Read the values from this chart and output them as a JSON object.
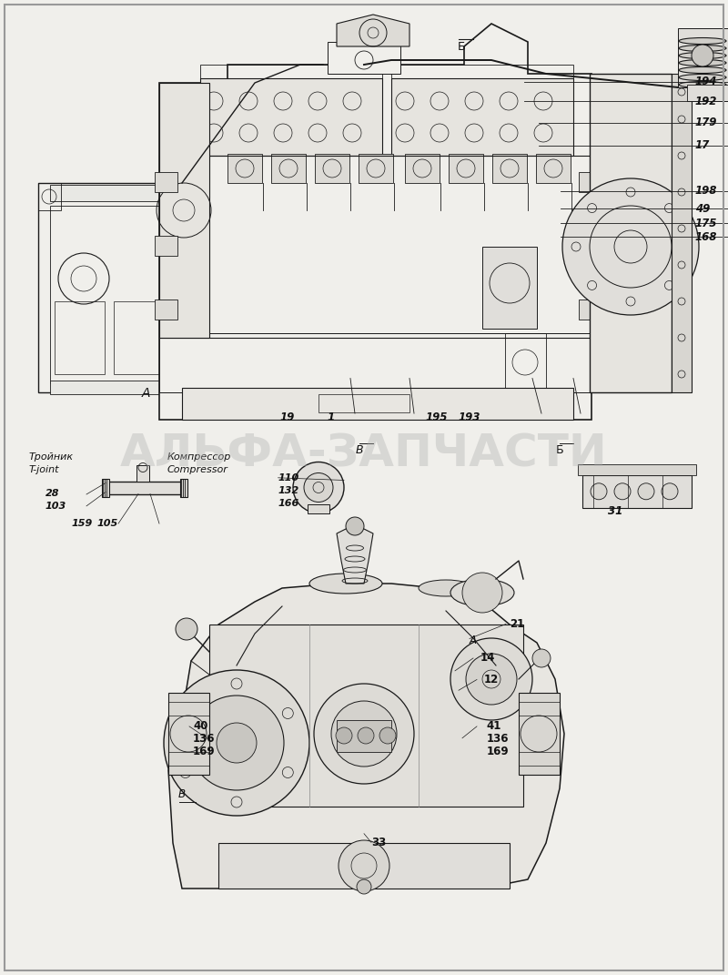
{
  "bg_color": "#f0efeb",
  "line_color": "#1a1a1a",
  "watermark_text": "АЛЬФА-ЗАПЧАСТИ",
  "watermark_color": "#b0b0b0",
  "watermark_alpha": 0.38,
  "watermark_fontsize": 36,
  "fig_width": 8.0,
  "fig_height": 10.71,
  "dpi": 100,
  "right_labels": [
    {
      "text": "194",
      "xf": 0.965,
      "yf": 0.916
    },
    {
      "text": "192",
      "xf": 0.965,
      "yf": 0.896
    },
    {
      "text": "179",
      "xf": 0.965,
      "yf": 0.874
    },
    {
      "text": "17",
      "xf": 0.965,
      "yf": 0.851
    },
    {
      "text": "198",
      "xf": 0.965,
      "yf": 0.804
    },
    {
      "text": "49",
      "xf": 0.965,
      "yf": 0.786
    },
    {
      "text": "175",
      "xf": 0.965,
      "yf": 0.771
    },
    {
      "text": "168",
      "xf": 0.965,
      "yf": 0.757
    }
  ],
  "bottom_labels_top_view": [
    {
      "text": "19",
      "xf": 0.395,
      "yf": 0.572
    },
    {
      "text": "1",
      "xf": 0.455,
      "yf": 0.572
    },
    {
      "text": "195",
      "xf": 0.6,
      "yf": 0.572
    },
    {
      "text": "193",
      "xf": 0.645,
      "yf": 0.572
    }
  ],
  "label_A_top": {
    "text": "А",
    "xf": 0.195,
    "yf": 0.597
  },
  "label_Б_top": {
    "text": "Б",
    "xf": 0.628,
    "yf": 0.952
  },
  "mid_section": {
    "label_B": {
      "text": "В",
      "xf": 0.488,
      "yf": 0.538
    },
    "label_Б": {
      "text": "Б",
      "xf": 0.763,
      "yf": 0.538
    },
    "tjoint_label1": {
      "text": "Тройник",
      "xf": 0.04,
      "yf": 0.531
    },
    "tjoint_label2": {
      "text": "T-joint",
      "xf": 0.04,
      "yf": 0.518
    },
    "comp_label1": {
      "text": "Компрессор",
      "xf": 0.23,
      "yf": 0.531
    },
    "comp_label2": {
      "text": "Compressor",
      "xf": 0.23,
      "yf": 0.518
    },
    "num_28": {
      "text": "28",
      "xf": 0.062,
      "yf": 0.494
    },
    "num_103": {
      "text": "103",
      "xf": 0.062,
      "yf": 0.481
    },
    "num_159": {
      "text": "159",
      "xf": 0.098,
      "yf": 0.463
    },
    "num_105": {
      "text": "105",
      "xf": 0.133,
      "yf": 0.463
    },
    "num_110": {
      "text": "110",
      "xf": 0.382,
      "yf": 0.51
    },
    "num_132": {
      "text": "132",
      "xf": 0.382,
      "yf": 0.497
    },
    "num_166": {
      "text": "166",
      "xf": 0.382,
      "yf": 0.484
    },
    "num_31": {
      "text": "31",
      "xf": 0.835,
      "yf": 0.476
    }
  },
  "bottom_view_labels": [
    {
      "text": "21",
      "xf": 0.7,
      "yf": 0.36
    },
    {
      "text": "А",
      "xf": 0.645,
      "yf": 0.343,
      "italic": true
    },
    {
      "text": "14",
      "xf": 0.66,
      "yf": 0.325
    },
    {
      "text": "12",
      "xf": 0.665,
      "yf": 0.303
    },
    {
      "text": "41",
      "xf": 0.668,
      "yf": 0.255
    },
    {
      "text": "136",
      "xf": 0.668,
      "yf": 0.242
    },
    {
      "text": "169",
      "xf": 0.668,
      "yf": 0.229
    },
    {
      "text": "40",
      "xf": 0.265,
      "yf": 0.255
    },
    {
      "text": "136",
      "xf": 0.265,
      "yf": 0.242
    },
    {
      "text": "169",
      "xf": 0.265,
      "yf": 0.229
    },
    {
      "text": "В",
      "xf": 0.244,
      "yf": 0.185,
      "italic": true
    },
    {
      "text": "33",
      "xf": 0.51,
      "yf": 0.136
    }
  ]
}
